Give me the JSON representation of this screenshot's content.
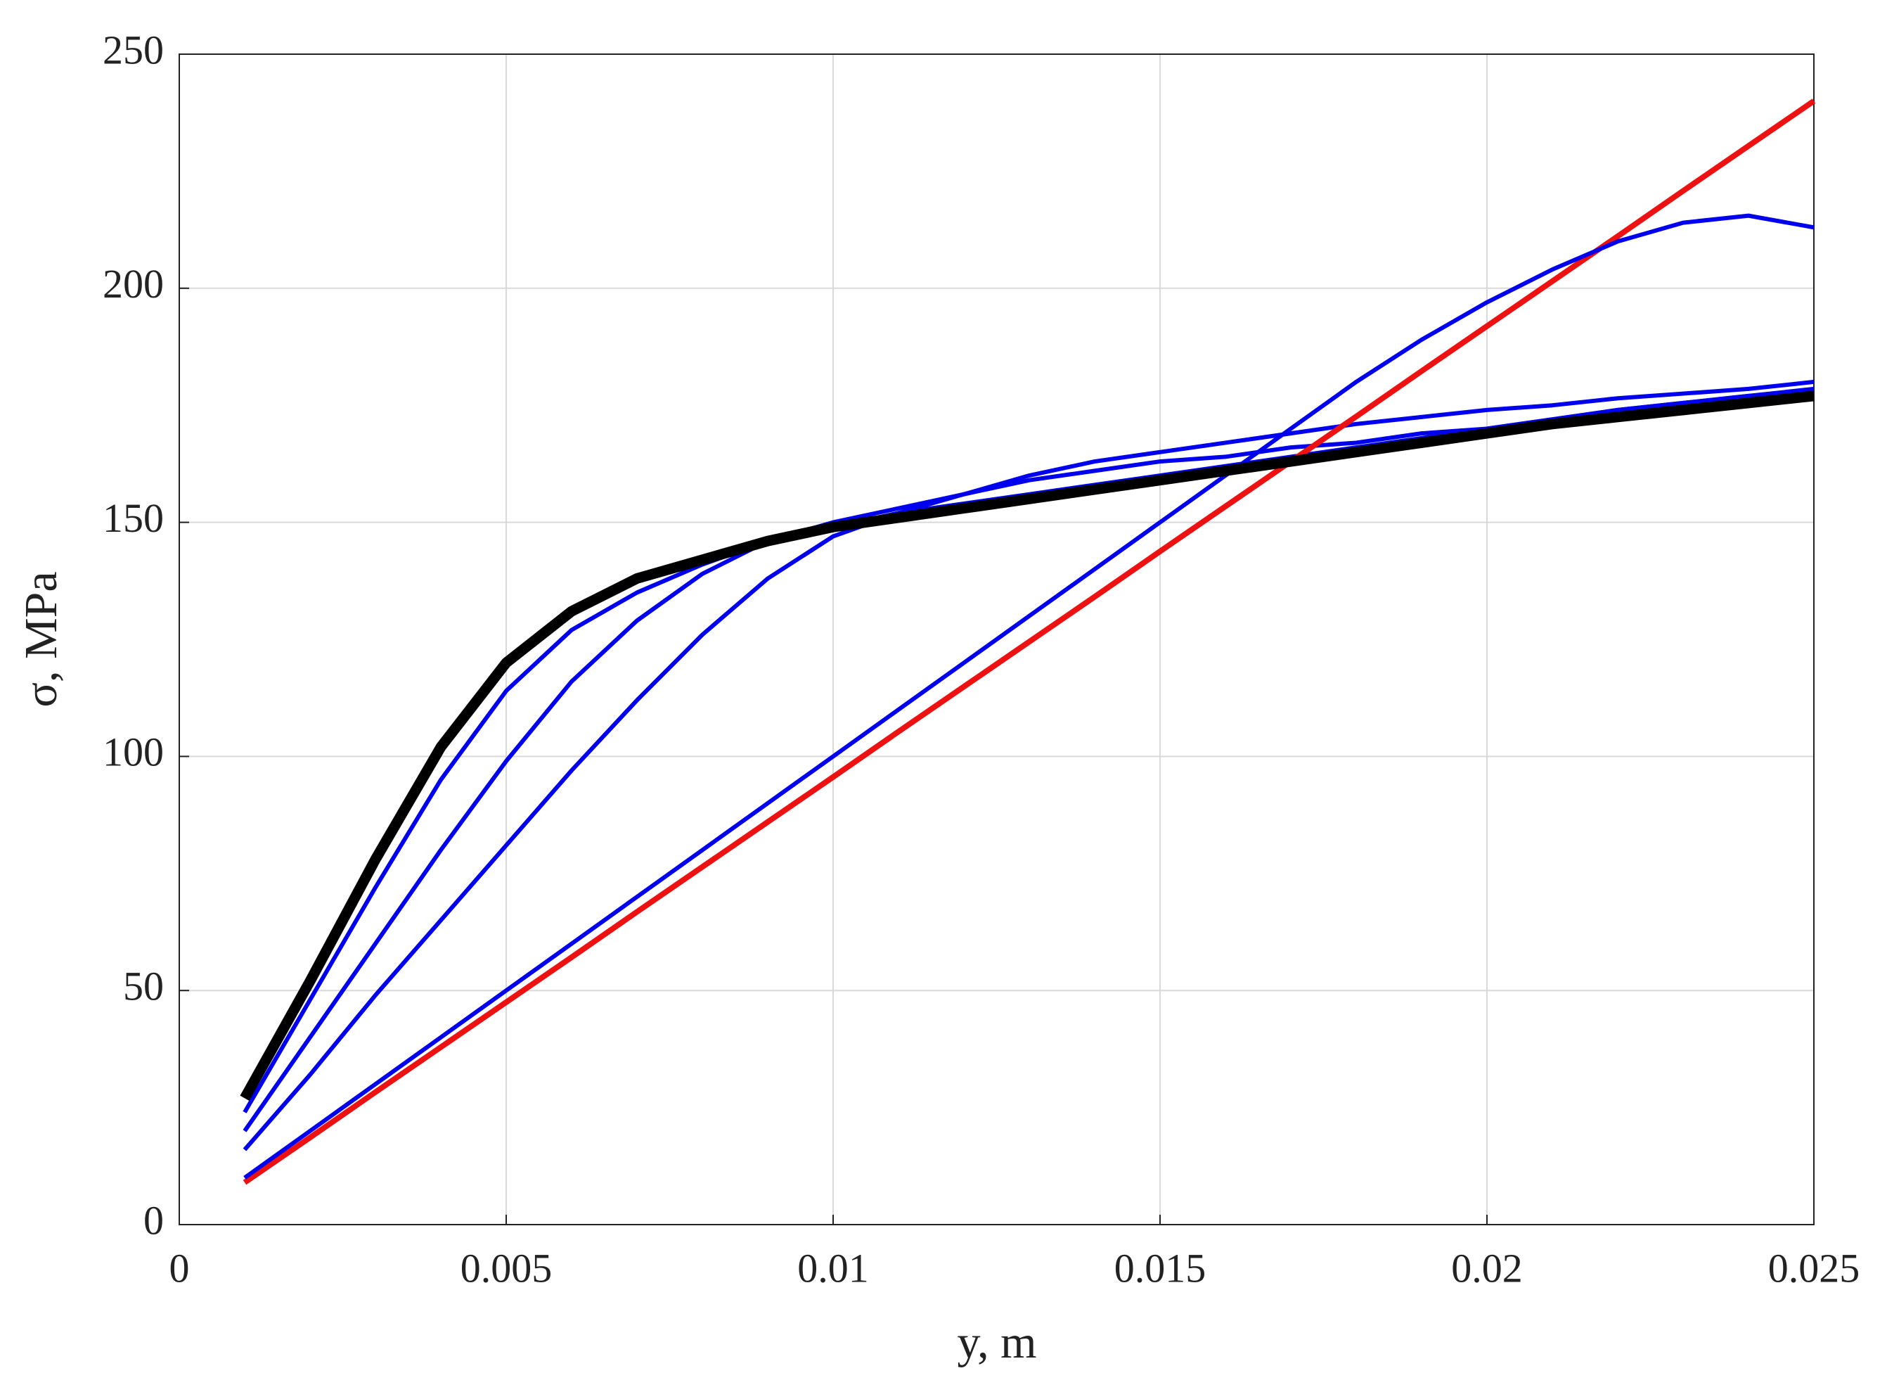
{
  "chart_data": {
    "type": "line",
    "xlabel": "y, m",
    "ylabel": "σ, MPa",
    "x": [
      0.001,
      0.002,
      0.003,
      0.004,
      0.005,
      0.006,
      0.007,
      0.008,
      0.009,
      0.01,
      0.011,
      0.012,
      0.013,
      0.014,
      0.015,
      0.016,
      0.017,
      0.018,
      0.019,
      0.02,
      0.021,
      0.022,
      0.023,
      0.024,
      0.025
    ],
    "series": [
      {
        "color": "#0000ee",
        "values": [
          24,
          48,
          72,
          95,
          114,
          127,
          135,
          141,
          146,
          149,
          152,
          154,
          156,
          158,
          160,
          162,
          164,
          166,
          168,
          170,
          172,
          174,
          175.5,
          177,
          178.5
        ]
      },
      {
        "color": "#0000ee",
        "values": [
          20,
          40,
          60,
          80,
          99,
          116,
          129,
          139,
          146,
          150,
          153,
          156,
          160,
          163,
          165,
          167,
          169,
          171,
          172.5,
          174,
          175,
          176.5,
          177.5,
          178.5,
          180
        ]
      },
      {
        "color": "#0000ee",
        "values": [
          16,
          32,
          49,
          65,
          81,
          97,
          112,
          126,
          138,
          147,
          152,
          156,
          159,
          161,
          163,
          164,
          166,
          167,
          169,
          170,
          172,
          174,
          175.5,
          177,
          178
        ]
      },
      {
        "color": "#ee1111",
        "values": [
          9,
          18.6,
          28.3,
          37.9,
          47.5,
          57.1,
          66.8,
          76.4,
          86,
          95.6,
          105.3,
          114.9,
          124.5,
          134.1,
          143.8,
          153.4,
          163,
          172.6,
          182.3,
          191.9,
          201.5,
          211.1,
          220.8,
          230.4,
          240
        ]
      },
      {
        "color": "#0000ee",
        "values": [
          10,
          20,
          30,
          40,
          50,
          60,
          70,
          80,
          90,
          100,
          110,
          120,
          130,
          140,
          150,
          160,
          170,
          180,
          189,
          197,
          204,
          210,
          214,
          215.5,
          213
        ]
      },
      {
        "color": "#000000",
        "values": [
          27,
          52,
          78,
          102,
          120,
          131,
          138,
          142,
          146,
          149,
          151,
          153,
          155,
          157,
          159,
          161,
          163,
          165,
          167,
          169,
          171,
          172.5,
          174,
          175.5,
          177
        ]
      }
    ],
    "xlim": [
      0,
      0.025
    ],
    "xticks": [
      0,
      0.005,
      0.01,
      0.015,
      0.02,
      0.025
    ],
    "ylim": [
      0,
      250
    ],
    "yticks": [
      0,
      50,
      100,
      150,
      200,
      250
    ],
    "grid": true
  }
}
